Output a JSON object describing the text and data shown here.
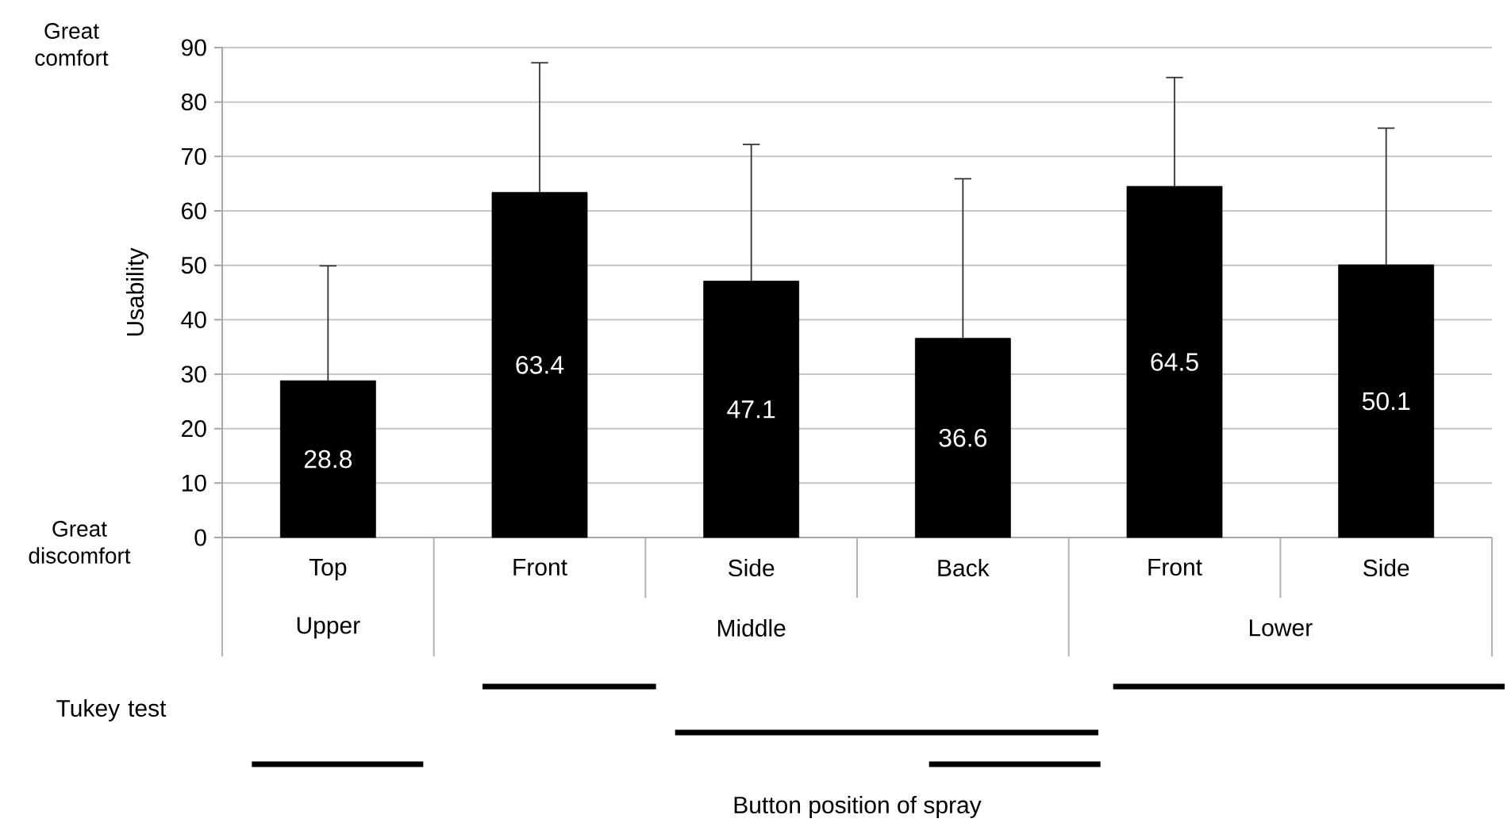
{
  "chart_data": {
    "type": "bar",
    "ylabel": "Usability",
    "categories": [
      "Top",
      "Front",
      "Side",
      "Back",
      "Front",
      "Side"
    ],
    "values": [
      28.8,
      63.4,
      47.1,
      36.6,
      64.5,
      50.1
    ],
    "errors": [
      [
        28.8,
        49.9
      ],
      [
        63.4,
        87.2
      ],
      [
        47.1,
        72.2
      ],
      [
        36.6,
        65.9
      ],
      [
        64.5,
        84.5
      ],
      [
        50.1,
        75.2
      ]
    ],
    "color": "#000000",
    "data_labels": true,
    "grid": "y",
    "ylim": [
      0,
      90
    ],
    "yticks": [
      0,
      10,
      20,
      30,
      40,
      50,
      60,
      70,
      80,
      90
    ],
    "annotations": [
      "Upper",
      "Middle",
      "Lower",
      "Tukey test",
      "Great comfort",
      "Great discomfort",
      "Button position of spray"
    ]
  }
}
